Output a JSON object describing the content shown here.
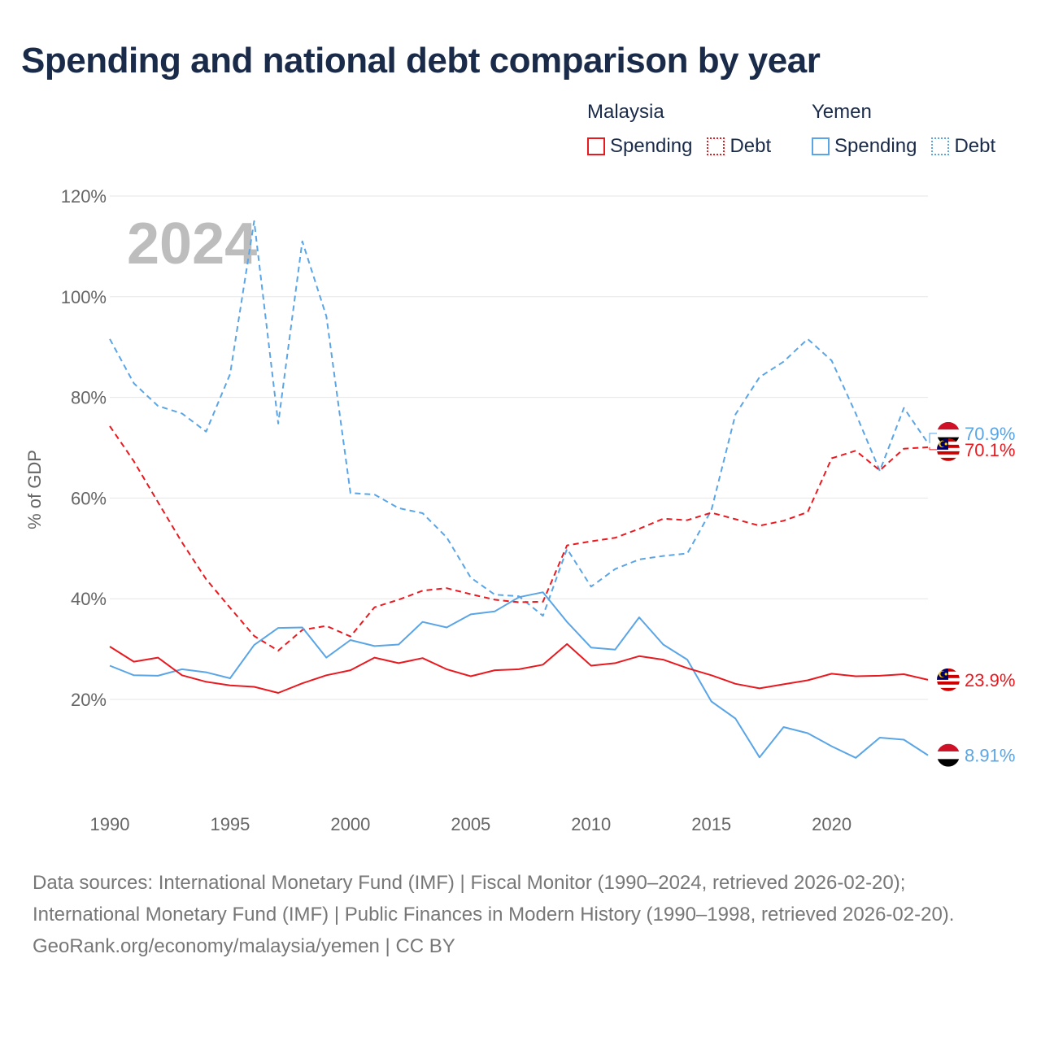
{
  "title": "Spending and national debt comparison by year",
  "legend": {
    "groups": [
      {
        "name": "Malaysia",
        "color": "#e8191f",
        "items": [
          {
            "label": "Spending",
            "style": "solid"
          },
          {
            "label": "Debt",
            "style": "dotted"
          }
        ]
      },
      {
        "name": "Yemen",
        "color": "#5aa5e6",
        "items": [
          {
            "label": "Spending",
            "style": "solid"
          },
          {
            "label": "Debt",
            "style": "dotted"
          }
        ]
      }
    ]
  },
  "chart_data": {
    "type": "line",
    "title": "Spending and national debt comparison by year",
    "xlabel": "",
    "ylabel": "% of GDP",
    "year_watermark": "2024",
    "xlim": [
      1990,
      2024
    ],
    "ylim": [
      0,
      120
    ],
    "y_ticks": [
      20,
      40,
      60,
      80,
      100,
      120
    ],
    "y_tick_labels": [
      "20%",
      "40%",
      "60%",
      "80%",
      "100%",
      "120%"
    ],
    "x_ticks": [
      1990,
      1995,
      2000,
      2005,
      2010,
      2015,
      2020
    ],
    "x_tick_labels": [
      "1990",
      "1995",
      "2000",
      "2005",
      "2010",
      "2015",
      "2020"
    ],
    "grid": true,
    "x": [
      1990,
      1991,
      1992,
      1993,
      1994,
      1995,
      1996,
      1997,
      1998,
      1999,
      2000,
      2001,
      2002,
      2003,
      2004,
      2005,
      2006,
      2007,
      2008,
      2009,
      2010,
      2011,
      2012,
      2013,
      2014,
      2015,
      2016,
      2017,
      2018,
      2019,
      2020,
      2021,
      2022,
      2023,
      2024
    ],
    "series": [
      {
        "name": "Malaysia Spending",
        "country": "Malaysia",
        "metric": "Spending",
        "color": "#e8191f",
        "dash": "solid",
        "end_label": "23.9%",
        "values": [
          30.5,
          27.5,
          28.3,
          24.8,
          23.5,
          22.8,
          22.5,
          21.3,
          23.2,
          24.8,
          25.8,
          28.3,
          27.2,
          28.2,
          26.0,
          24.6,
          25.8,
          26.0,
          26.9,
          31.0,
          26.7,
          27.2,
          28.6,
          27.9,
          26.2,
          24.8,
          23.1,
          22.2,
          23.0,
          23.8,
          25.1,
          24.6,
          24.7,
          25.0,
          23.9
        ]
      },
      {
        "name": "Malaysia Debt",
        "country": "Malaysia",
        "metric": "Debt",
        "color": "#e8191f",
        "dash": "dashed",
        "end_label": "70.1%",
        "values": [
          74.3,
          67.3,
          59.2,
          51.2,
          43.9,
          38.2,
          32.6,
          29.7,
          33.8,
          34.6,
          32.5,
          38.3,
          39.8,
          41.6,
          42.1,
          40.9,
          39.8,
          39.3,
          39.4,
          50.6,
          51.4,
          52.1,
          53.9,
          55.9,
          55.6,
          57.1,
          55.8,
          54.5,
          55.5,
          57.2,
          67.9,
          69.4,
          65.5,
          69.8,
          70.1
        ]
      },
      {
        "name": "Yemen Spending",
        "country": "Yemen",
        "metric": "Spending",
        "color": "#5aa5e6",
        "dash": "solid",
        "end_label": "8.91%",
        "values": [
          26.7,
          24.8,
          24.7,
          26.0,
          25.4,
          24.2,
          30.8,
          34.2,
          34.3,
          28.3,
          31.8,
          30.6,
          30.9,
          35.4,
          34.3,
          36.9,
          37.5,
          40.3,
          41.3,
          35.4,
          30.3,
          29.9,
          36.3,
          30.9,
          27.9,
          19.6,
          16.2,
          8.5,
          14.5,
          13.3,
          10.7,
          8.4,
          12.4,
          12.0,
          8.91
        ]
      },
      {
        "name": "Yemen Debt",
        "country": "Yemen",
        "metric": "Debt",
        "color": "#5aa5e6",
        "dash": "dashed",
        "end_label": "70.9%",
        "values": [
          91.6,
          82.8,
          78.3,
          76.8,
          73.2,
          84.6,
          115.0,
          74.8,
          111.0,
          96.1,
          61.0,
          60.7,
          58.0,
          57.0,
          52.2,
          44.2,
          40.8,
          40.5,
          36.6,
          49.9,
          42.4,
          45.9,
          47.8,
          48.5,
          49.0,
          57.6,
          76.6,
          84.0,
          87.1,
          91.6,
          87.3,
          76.8,
          65.4,
          77.9,
          70.9
        ]
      }
    ]
  },
  "footer": {
    "sources": "Data sources: International Monetary Fund (IMF) | Fiscal Monitor (1990–2024, retrieved 2026-02-20); International Monetary Fund (IMF) | Public Finances in Modern History (1990–1998, retrieved 2026-02-20).",
    "credit": "GeoRank.org/economy/malaysia/yemen | CC BY"
  }
}
